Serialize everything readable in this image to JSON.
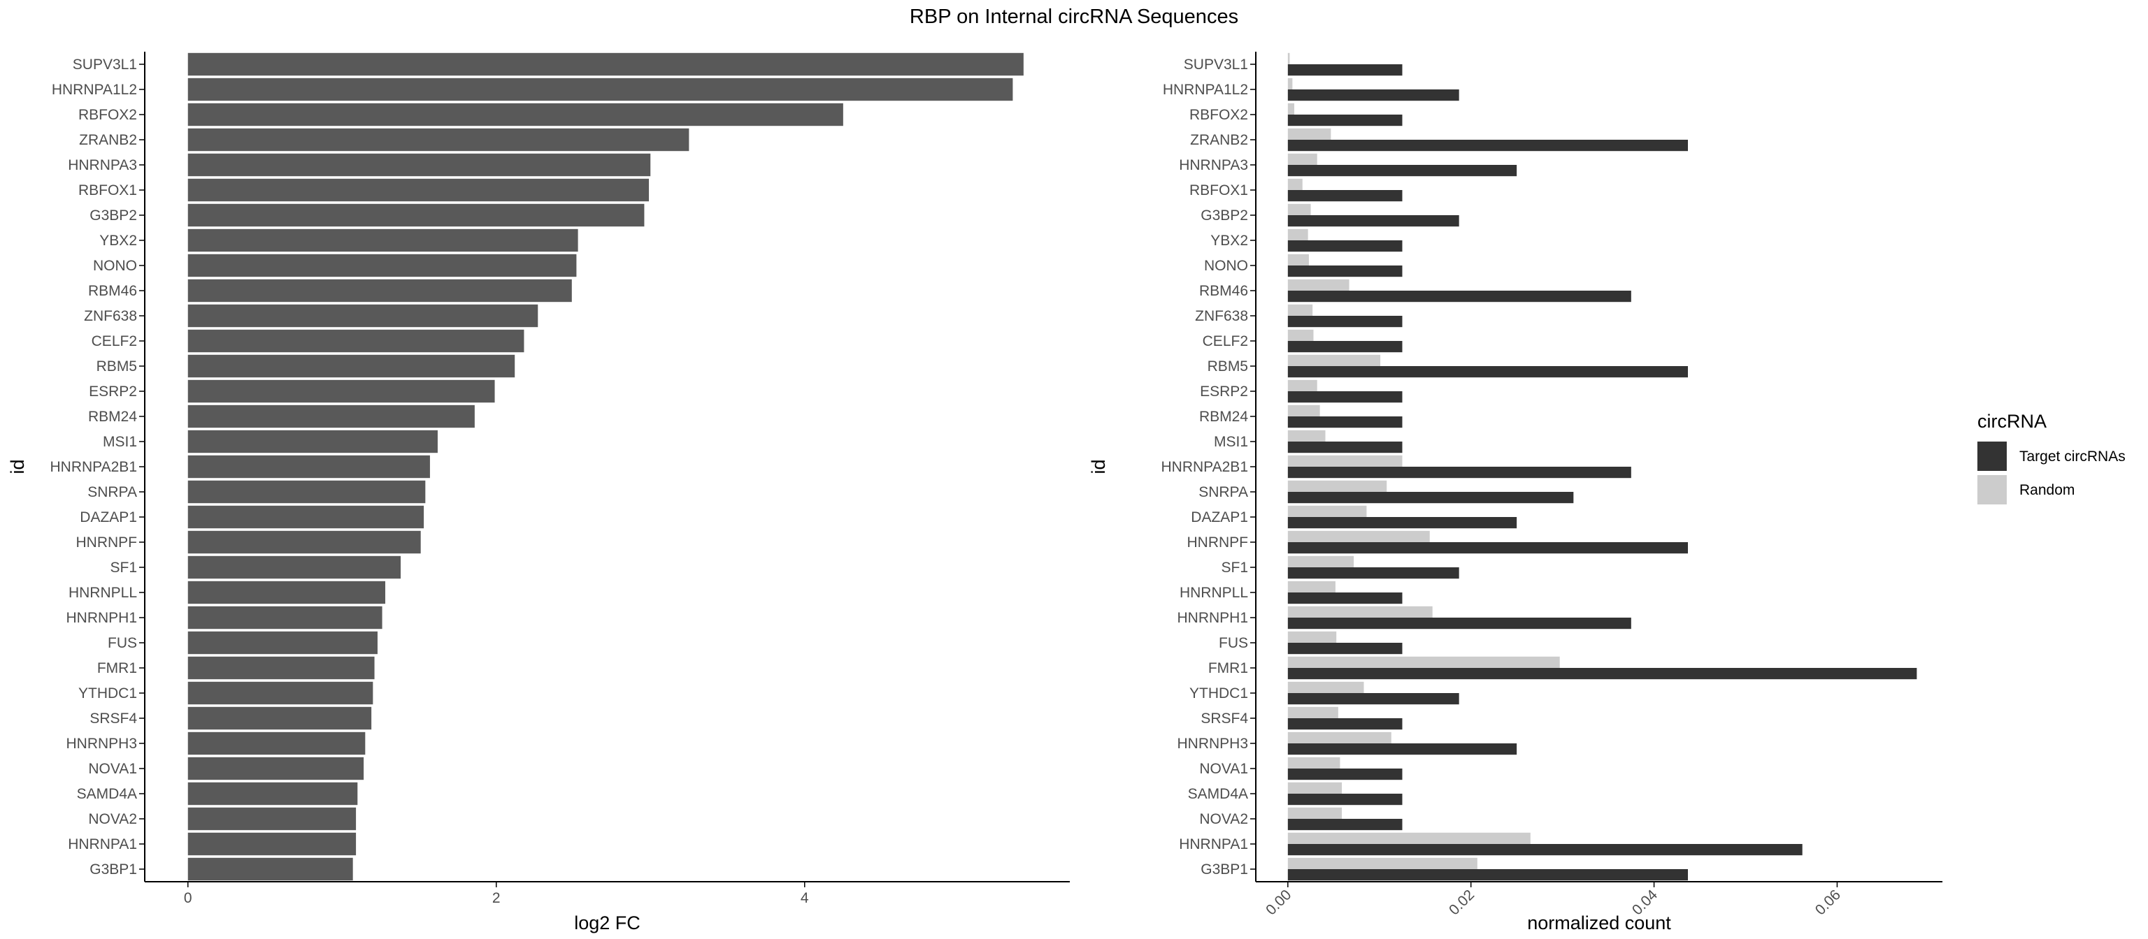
{
  "figure_title": "RBP on Internal circRNA Sequences",
  "colors": {
    "bar": "#595959",
    "target": "#333333",
    "random": "#cccccc",
    "axis": "#000000"
  },
  "chart_data": [
    {
      "type": "bar",
      "orientation": "horizontal",
      "title": "",
      "xlabel": "log2 FC",
      "ylabel": "id",
      "xlim": [
        -0.28,
        5.72
      ],
      "xticks": [
        "0",
        "2",
        "4"
      ],
      "grid": false,
      "categories": [
        "SUPV3L1",
        "HNRNPA1L2",
        "RBFOX2",
        "ZRANB2",
        "HNRNPA3",
        "RBFOX1",
        "G3BP2",
        "YBX2",
        "NONO",
        "RBM46",
        "ZNF638",
        "CELF2",
        "RBM5",
        "ESRP2",
        "RBM24",
        "MSI1",
        "HNRNPA2B1",
        "SNRPA",
        "DAZAP1",
        "HNRNPF",
        "SF1",
        "HNRNPLL",
        "HNRNPH1",
        "FUS",
        "FMR1",
        "YTHDC1",
        "SRSF4",
        "HNRNPH3",
        "NOVA1",
        "SAMD4A",
        "NOVA2",
        "HNRNPA1",
        "G3BP1"
      ],
      "values": [
        5.42,
        5.35,
        4.25,
        3.25,
        3.0,
        2.99,
        2.96,
        2.53,
        2.52,
        2.49,
        2.27,
        2.18,
        2.12,
        1.99,
        1.86,
        1.62,
        1.57,
        1.54,
        1.53,
        1.51,
        1.38,
        1.28,
        1.26,
        1.23,
        1.21,
        1.2,
        1.19,
        1.15,
        1.14,
        1.1,
        1.09,
        1.09,
        1.07
      ]
    },
    {
      "type": "bar",
      "orientation": "horizontal",
      "title": "",
      "xlabel": "normalized count",
      "ylabel": "id",
      "xlim": [
        -0.0035,
        0.0715
      ],
      "xticks": [
        "0.00",
        "0.02",
        "0.04",
        "0.06"
      ],
      "grid": false,
      "categories": [
        "SUPV3L1",
        "HNRNPA1L2",
        "RBFOX2",
        "ZRANB2",
        "HNRNPA3",
        "RBFOX1",
        "G3BP2",
        "YBX2",
        "NONO",
        "RBM46",
        "ZNF638",
        "CELF2",
        "RBM5",
        "ESRP2",
        "RBM24",
        "MSI1",
        "HNRNPA2B1",
        "SNRPA",
        "DAZAP1",
        "HNRNPF",
        "SF1",
        "HNRNPLL",
        "HNRNPH1",
        "FUS",
        "FMR1",
        "YTHDC1",
        "SRSF4",
        "HNRNPH3",
        "NOVA1",
        "SAMD4A",
        "NOVA2",
        "HNRNPA1",
        "G3BP1"
      ],
      "legend": {
        "title": "circRNA",
        "placement": "right"
      },
      "series": [
        {
          "name": "Target circRNAs",
          "values": [
            0.0125,
            0.0187,
            0.0125,
            0.0437,
            0.025,
            0.0125,
            0.0187,
            0.0125,
            0.0125,
            0.0375,
            0.0125,
            0.0125,
            0.0437,
            0.0125,
            0.0125,
            0.0125,
            0.0375,
            0.0312,
            0.025,
            0.0437,
            0.0187,
            0.0125,
            0.0375,
            0.0125,
            0.0687,
            0.0187,
            0.0125,
            0.025,
            0.0125,
            0.0125,
            0.0125,
            0.0562,
            0.0437
          ]
        },
        {
          "name": "Random",
          "values": [
            0.0002,
            0.0005,
            0.0007,
            0.0047,
            0.0032,
            0.0016,
            0.0025,
            0.0022,
            0.0023,
            0.0067,
            0.0027,
            0.0028,
            0.0101,
            0.0032,
            0.0035,
            0.0041,
            0.0125,
            0.0108,
            0.0086,
            0.0155,
            0.0072,
            0.0052,
            0.0158,
            0.0053,
            0.0297,
            0.0083,
            0.0055,
            0.0113,
            0.0057,
            0.0059,
            0.0059,
            0.0265,
            0.0207
          ]
        }
      ]
    }
  ]
}
